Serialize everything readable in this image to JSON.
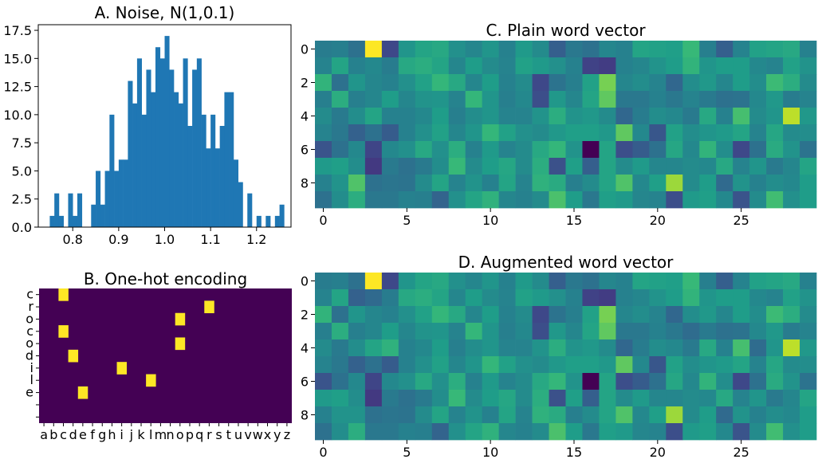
{
  "chart_data": [
    {
      "id": "A",
      "type": "bar",
      "title": "A. Noise, N(1,0.1)",
      "xlabel": "",
      "ylabel": "",
      "xlim": [
        0.725,
        1.275
      ],
      "ylim": [
        0,
        18
      ],
      "xticks": [
        0.8,
        0.9,
        1.0,
        1.1,
        1.2
      ],
      "xtick_labels": [
        "0.8",
        "0.9",
        "1.0",
        "1.1",
        "1.2"
      ],
      "yticks": [
        0,
        2.5,
        5,
        7.5,
        10,
        12.5,
        15,
        17.5
      ],
      "ytick_labels": [
        "0.0",
        "2.5",
        "5.0",
        "7.5",
        "10.0",
        "12.5",
        "15.0",
        "17.5"
      ],
      "color": "#1f77b4",
      "bin_start": 0.75,
      "bin_width": 0.01,
      "values": [
        1,
        3,
        1,
        0,
        3,
        1,
        3,
        0,
        0,
        2,
        5,
        2,
        5,
        10,
        5,
        6,
        6,
        13,
        11,
        15,
        10,
        14,
        12,
        16,
        15,
        17,
        14,
        12,
        11,
        15,
        9,
        14,
        15,
        10,
        7,
        10,
        7,
        9,
        12,
        12,
        6,
        4,
        0,
        3,
        0,
        1,
        0,
        1,
        0,
        1,
        2
      ]
    },
    {
      "id": "B",
      "type": "heatmap",
      "title": "B. One-hot encoding",
      "background": "#440154",
      "hot_color": "#fde725",
      "xtick_labels": [
        "a",
        "b",
        "c",
        "d",
        "e",
        "f",
        "g",
        "h",
        "i",
        "j",
        "k",
        "l",
        "m",
        "n",
        "o",
        "p",
        "q",
        "r",
        "s",
        "t",
        "u",
        "v",
        "w",
        "x",
        "y",
        "z"
      ],
      "ytick_labels": [
        "c",
        "r",
        "o",
        "c",
        "o",
        "d",
        "i",
        "l",
        "e",
        "",
        ""
      ],
      "cells": [
        [
          2,
          0
        ],
        [
          17,
          1
        ],
        [
          14,
          2
        ],
        [
          2,
          3
        ],
        [
          14,
          4
        ],
        [
          3,
          5
        ],
        [
          8,
          6
        ],
        [
          11,
          7
        ],
        [
          4,
          8
        ]
      ]
    },
    {
      "id": "C",
      "type": "heatmap",
      "title": "C. Plain word vector",
      "xticks": [
        0,
        5,
        10,
        15,
        20,
        25
      ],
      "yticks": [
        0,
        2,
        4,
        6,
        8
      ],
      "colormap": "viridis",
      "rows": 10,
      "cols": 30,
      "values": [
        [
          0.42,
          0.43,
          0.37,
          1.0,
          0.22,
          0.52,
          0.58,
          0.6,
          0.5,
          0.46,
          0.52,
          0.44,
          0.54,
          0.48,
          0.3,
          0.4,
          0.37,
          0.46,
          0.44,
          0.58,
          0.57,
          0.56,
          0.67,
          0.43,
          0.3,
          0.45,
          0.57,
          0.58,
          0.6,
          0.44
        ],
        [
          0.45,
          0.58,
          0.44,
          0.47,
          0.42,
          0.6,
          0.62,
          0.58,
          0.46,
          0.55,
          0.48,
          0.45,
          0.57,
          0.54,
          0.5,
          0.44,
          0.2,
          0.18,
          0.44,
          0.46,
          0.51,
          0.55,
          0.65,
          0.52,
          0.55,
          0.55,
          0.47,
          0.45,
          0.57,
          0.51
        ],
        [
          0.65,
          0.37,
          0.52,
          0.46,
          0.44,
          0.5,
          0.57,
          0.66,
          0.6,
          0.46,
          0.55,
          0.44,
          0.48,
          0.22,
          0.38,
          0.43,
          0.57,
          0.79,
          0.46,
          0.49,
          0.45,
          0.33,
          0.49,
          0.53,
          0.46,
          0.55,
          0.49,
          0.68,
          0.62,
          0.48
        ],
        [
          0.43,
          0.62,
          0.43,
          0.46,
          0.55,
          0.46,
          0.51,
          0.52,
          0.45,
          0.66,
          0.52,
          0.43,
          0.47,
          0.24,
          0.53,
          0.46,
          0.58,
          0.75,
          0.4,
          0.4,
          0.44,
          0.4,
          0.45,
          0.41,
          0.37,
          0.38,
          0.47,
          0.53,
          0.42,
          0.45
        ],
        [
          0.48,
          0.41,
          0.49,
          0.58,
          0.44,
          0.44,
          0.47,
          0.55,
          0.43,
          0.49,
          0.52,
          0.45,
          0.45,
          0.51,
          0.62,
          0.51,
          0.53,
          0.48,
          0.33,
          0.42,
          0.49,
          0.47,
          0.41,
          0.6,
          0.44,
          0.7,
          0.48,
          0.52,
          0.9,
          0.53
        ],
        [
          0.45,
          0.4,
          0.31,
          0.37,
          0.29,
          0.44,
          0.5,
          0.57,
          0.46,
          0.52,
          0.66,
          0.57,
          0.5,
          0.48,
          0.53,
          0.56,
          0.56,
          0.53,
          0.75,
          0.47,
          0.27,
          0.57,
          0.49,
          0.52,
          0.54,
          0.58,
          0.45,
          0.59,
          0.48,
          0.49
        ],
        [
          0.26,
          0.37,
          0.47,
          0.21,
          0.47,
          0.5,
          0.6,
          0.5,
          0.62,
          0.44,
          0.54,
          0.45,
          0.48,
          0.6,
          0.66,
          0.51,
          0.0,
          0.58,
          0.24,
          0.29,
          0.37,
          0.59,
          0.47,
          0.65,
          0.49,
          0.22,
          0.37,
          0.61,
          0.51,
          0.38
        ],
        [
          0.54,
          0.56,
          0.49,
          0.17,
          0.41,
          0.37,
          0.41,
          0.49,
          0.67,
          0.48,
          0.55,
          0.59,
          0.48,
          0.62,
          0.25,
          0.56,
          0.3,
          0.58,
          0.48,
          0.54,
          0.46,
          0.46,
          0.48,
          0.47,
          0.6,
          0.45,
          0.52,
          0.41,
          0.46,
          0.58
        ],
        [
          0.44,
          0.51,
          0.72,
          0.37,
          0.39,
          0.38,
          0.48,
          0.58,
          0.45,
          0.51,
          0.44,
          0.58,
          0.45,
          0.64,
          0.61,
          0.43,
          0.48,
          0.58,
          0.72,
          0.47,
          0.56,
          0.85,
          0.48,
          0.55,
          0.34,
          0.51,
          0.44,
          0.49,
          0.47,
          0.55
        ],
        [
          0.37,
          0.49,
          0.62,
          0.4,
          0.4,
          0.44,
          0.43,
          0.32,
          0.5,
          0.58,
          0.64,
          0.46,
          0.44,
          0.48,
          0.71,
          0.55,
          0.4,
          0.56,
          0.54,
          0.46,
          0.45,
          0.24,
          0.54,
          0.56,
          0.47,
          0.26,
          0.48,
          0.69,
          0.5,
          0.55
        ]
      ]
    },
    {
      "id": "D",
      "type": "heatmap",
      "title": "D. Augmented word vector",
      "xticks": [
        0,
        5,
        10,
        15,
        20,
        25
      ],
      "yticks": [
        0,
        2,
        4,
        6,
        8
      ],
      "colormap": "viridis",
      "rows": 10,
      "cols": 30,
      "values": [
        [
          0.42,
          0.43,
          0.37,
          1.0,
          0.22,
          0.52,
          0.58,
          0.6,
          0.5,
          0.46,
          0.52,
          0.44,
          0.54,
          0.48,
          0.3,
          0.4,
          0.37,
          0.46,
          0.44,
          0.58,
          0.57,
          0.56,
          0.67,
          0.43,
          0.3,
          0.45,
          0.57,
          0.58,
          0.6,
          0.44
        ],
        [
          0.45,
          0.58,
          0.31,
          0.34,
          0.42,
          0.6,
          0.62,
          0.58,
          0.46,
          0.55,
          0.48,
          0.45,
          0.57,
          0.54,
          0.5,
          0.44,
          0.2,
          0.18,
          0.44,
          0.46,
          0.51,
          0.55,
          0.65,
          0.52,
          0.55,
          0.55,
          0.47,
          0.45,
          0.57,
          0.51
        ],
        [
          0.65,
          0.37,
          0.52,
          0.46,
          0.44,
          0.5,
          0.57,
          0.66,
          0.6,
          0.46,
          0.55,
          0.44,
          0.48,
          0.22,
          0.38,
          0.43,
          0.57,
          0.79,
          0.46,
          0.49,
          0.45,
          0.33,
          0.49,
          0.53,
          0.46,
          0.55,
          0.49,
          0.68,
          0.62,
          0.48
        ],
        [
          0.43,
          0.62,
          0.43,
          0.46,
          0.55,
          0.46,
          0.51,
          0.52,
          0.45,
          0.66,
          0.52,
          0.43,
          0.47,
          0.24,
          0.53,
          0.46,
          0.58,
          0.75,
          0.4,
          0.4,
          0.44,
          0.4,
          0.35,
          0.41,
          0.37,
          0.38,
          0.47,
          0.53,
          0.42,
          0.45
        ],
        [
          0.48,
          0.41,
          0.49,
          0.58,
          0.64,
          0.44,
          0.47,
          0.55,
          0.43,
          0.49,
          0.52,
          0.45,
          0.45,
          0.51,
          0.62,
          0.51,
          0.53,
          0.48,
          0.33,
          0.42,
          0.49,
          0.47,
          0.41,
          0.6,
          0.44,
          0.7,
          0.35,
          0.52,
          0.9,
          0.53
        ],
        [
          0.45,
          0.4,
          0.31,
          0.37,
          0.29,
          0.44,
          0.5,
          0.57,
          0.46,
          0.52,
          0.66,
          0.57,
          0.5,
          0.48,
          0.53,
          0.56,
          0.56,
          0.53,
          0.75,
          0.47,
          0.27,
          0.57,
          0.49,
          0.52,
          0.54,
          0.58,
          0.45,
          0.59,
          0.48,
          0.49
        ],
        [
          0.26,
          0.37,
          0.47,
          0.21,
          0.47,
          0.5,
          0.6,
          0.5,
          0.62,
          0.44,
          0.54,
          0.45,
          0.48,
          0.6,
          0.66,
          0.51,
          0.0,
          0.58,
          0.24,
          0.29,
          0.37,
          0.59,
          0.47,
          0.65,
          0.49,
          0.22,
          0.37,
          0.61,
          0.51,
          0.38
        ],
        [
          0.54,
          0.56,
          0.49,
          0.17,
          0.41,
          0.37,
          0.41,
          0.49,
          0.67,
          0.48,
          0.55,
          0.59,
          0.48,
          0.62,
          0.25,
          0.56,
          0.3,
          0.58,
          0.48,
          0.54,
          0.46,
          0.46,
          0.48,
          0.47,
          0.6,
          0.45,
          0.52,
          0.41,
          0.46,
          0.58
        ],
        [
          0.44,
          0.51,
          0.51,
          0.37,
          0.39,
          0.38,
          0.48,
          0.58,
          0.45,
          0.51,
          0.44,
          0.58,
          0.45,
          0.64,
          0.61,
          0.43,
          0.48,
          0.58,
          0.72,
          0.47,
          0.56,
          0.85,
          0.48,
          0.55,
          0.34,
          0.51,
          0.44,
          0.49,
          0.47,
          0.55
        ],
        [
          0.37,
          0.49,
          0.62,
          0.4,
          0.4,
          0.44,
          0.43,
          0.32,
          0.5,
          0.58,
          0.64,
          0.46,
          0.44,
          0.48,
          0.71,
          0.55,
          0.4,
          0.56,
          0.54,
          0.46,
          0.45,
          0.24,
          0.54,
          0.56,
          0.47,
          0.26,
          0.48,
          0.69,
          0.5,
          0.55
        ]
      ]
    }
  ]
}
